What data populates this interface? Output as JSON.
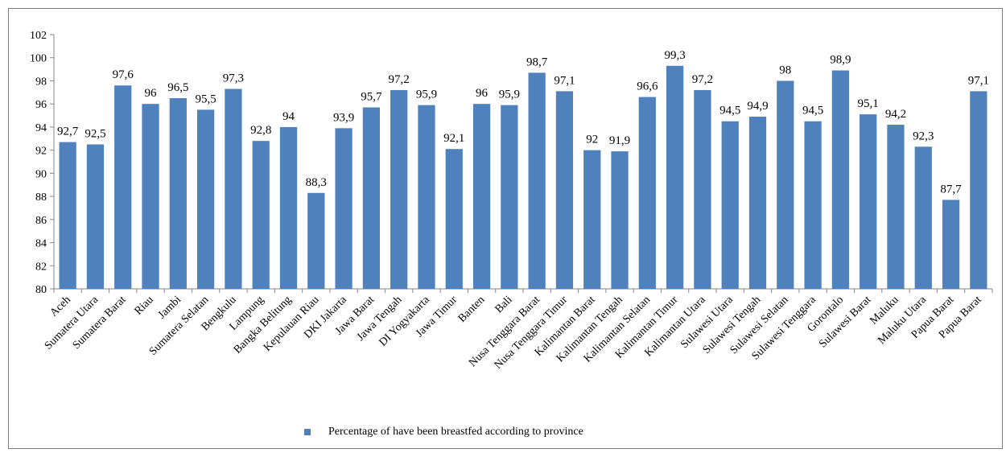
{
  "chart_data": {
    "type": "bar",
    "categories": [
      "Aceh",
      "Sumatera Utara",
      "Sumatera Barat",
      "Riau",
      "Jambi",
      "Sumatera Selatan",
      "Bengkulu",
      "Lampung",
      "Bangka Belitung",
      "Kepulauan Riau",
      "DKI Jakarta",
      "Jawa Barat",
      "Jawa Tengah",
      "DI Yogyakarta",
      "Jawa Timur",
      "Banten",
      "Bali",
      "Nusa Tenggara Barat",
      "Nusa Tenggara Timur",
      "Kalimantan Barat",
      "Kalimantan Tengah",
      "Kalimantan Selatan",
      "Kalimantan Timur",
      "Kalimantan Utara",
      "Sulawesi Utara",
      "Sulawesi Tengah",
      "Sulawesi Selatan",
      "Sulawesi Tenggara",
      "Gorontalo",
      "Sulawesi Barat",
      "Maluku",
      "Maluku Utara",
      "Papua Barat",
      "Papua Barat"
    ],
    "values": [
      92.7,
      92.5,
      97.6,
      96,
      96.5,
      95.5,
      97.3,
      92.8,
      94,
      88.3,
      93.9,
      95.7,
      97.2,
      95.9,
      92.1,
      96,
      95.9,
      98.7,
      97.1,
      92,
      91.9,
      96.6,
      99.3,
      97.2,
      94.5,
      94.9,
      98,
      94.5,
      98.9,
      95.1,
      94.2,
      92.3,
      87.7,
      97.1
    ],
    "value_labels": [
      "92,7",
      "92,5",
      "97,6",
      "96",
      "96,5",
      "95,5",
      "97,3",
      "92,8",
      "94",
      "88,3",
      "93,9",
      "95,7",
      "97,2",
      "95,9",
      "92,1",
      "96",
      "95,9",
      "98,7",
      "97,1",
      "92",
      "91,9",
      "96,6",
      "99,3",
      "97,2",
      "94,5",
      "94,9",
      "98",
      "94,5",
      "98,9",
      "95,1",
      "94,2",
      "92,3",
      "87,7",
      "97,1"
    ],
    "series": [
      {
        "name": "Percentage of have been breastfed according to province"
      }
    ],
    "ylim": [
      80,
      102
    ],
    "yticks": [
      80,
      82,
      84,
      86,
      88,
      90,
      92,
      94,
      96,
      98,
      100,
      102
    ],
    "grid": false,
    "legend_position": "bottom",
    "bar_color": "#4f81bd"
  }
}
